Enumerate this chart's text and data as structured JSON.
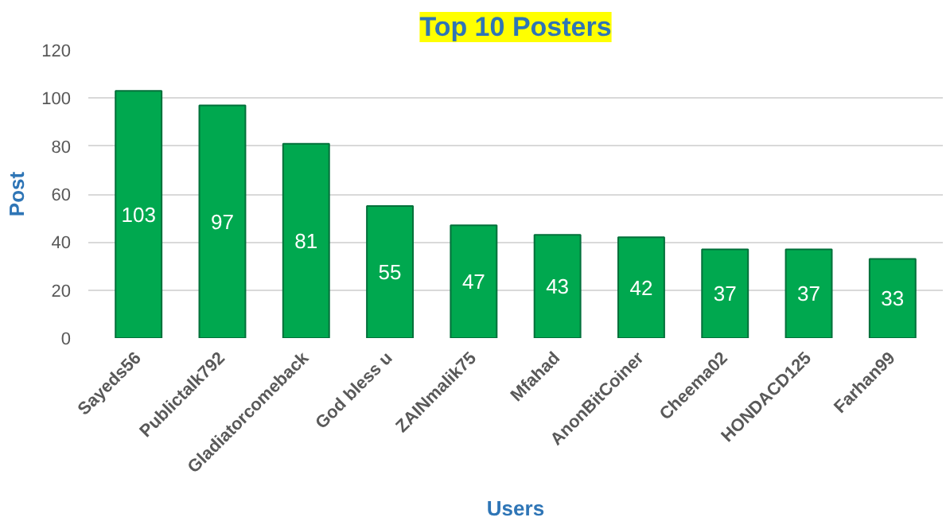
{
  "chart_data": {
    "type": "bar",
    "title": "Top 10 Posters",
    "xlabel": "Users",
    "ylabel": "Post",
    "categories": [
      "Sayeds56",
      "Publictalk792",
      "Gladiatorcomeback",
      "God bless u",
      "ZAINmalik75",
      "Mfahad",
      "AnonBitCoiner",
      "Cheema02",
      "HONDACD125",
      "Farhan99"
    ],
    "values": [
      103,
      97,
      81,
      55,
      47,
      43,
      42,
      37,
      37,
      33
    ],
    "color": "#00a84f",
    "ylim": [
      0,
      120
    ],
    "yticks": [
      0,
      20,
      40,
      60,
      80,
      100,
      120
    ],
    "grid": "y",
    "data_labels": true
  }
}
